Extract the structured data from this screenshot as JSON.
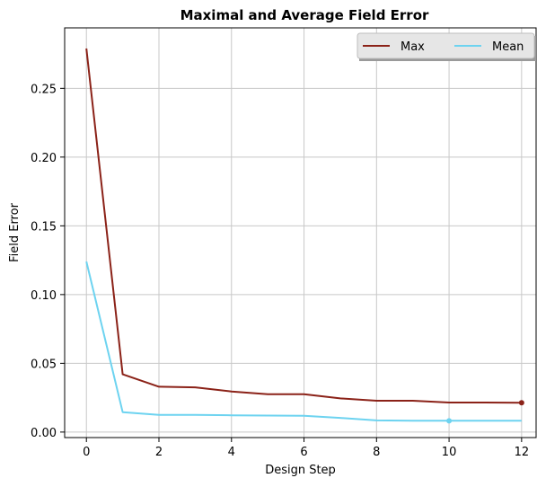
{
  "chart_data": {
    "type": "line",
    "title": "Maximal and Average Field Error",
    "xlabel": "Design Step",
    "ylabel": "Field Error",
    "xlim": [
      -0.6,
      12.4
    ],
    "ylim": [
      -0.004,
      0.294
    ],
    "xticks": [
      0,
      2,
      4,
      6,
      8,
      10,
      12
    ],
    "xtick_labels": [
      "0",
      "2",
      "4",
      "6",
      "8",
      "10",
      "12"
    ],
    "yticks": [
      0.0,
      0.05,
      0.1,
      0.15,
      0.2,
      0.25
    ],
    "ytick_labels": [
      "0.00",
      "0.05",
      "0.10",
      "0.15",
      "0.20",
      "0.25"
    ],
    "grid": true,
    "legend_position": "top-right",
    "x": [
      0,
      1,
      2,
      3,
      4,
      5,
      6,
      7,
      8,
      9,
      10,
      11,
      12
    ],
    "series": [
      {
        "name": "Max",
        "color": "#8b2218",
        "values": [
          0.279,
          0.042,
          0.033,
          0.0325,
          0.0295,
          0.0275,
          0.0275,
          0.0245,
          0.0228,
          0.0228,
          0.0215,
          0.0215,
          0.0213
        ],
        "marker_at": 12
      },
      {
        "name": "Mean",
        "color": "#6dd3f0",
        "values": [
          0.124,
          0.0145,
          0.0125,
          0.0125,
          0.0122,
          0.012,
          0.0118,
          0.0103,
          0.0085,
          0.0083,
          0.0082,
          0.0082,
          0.0082
        ],
        "marker_at": 10
      }
    ]
  }
}
